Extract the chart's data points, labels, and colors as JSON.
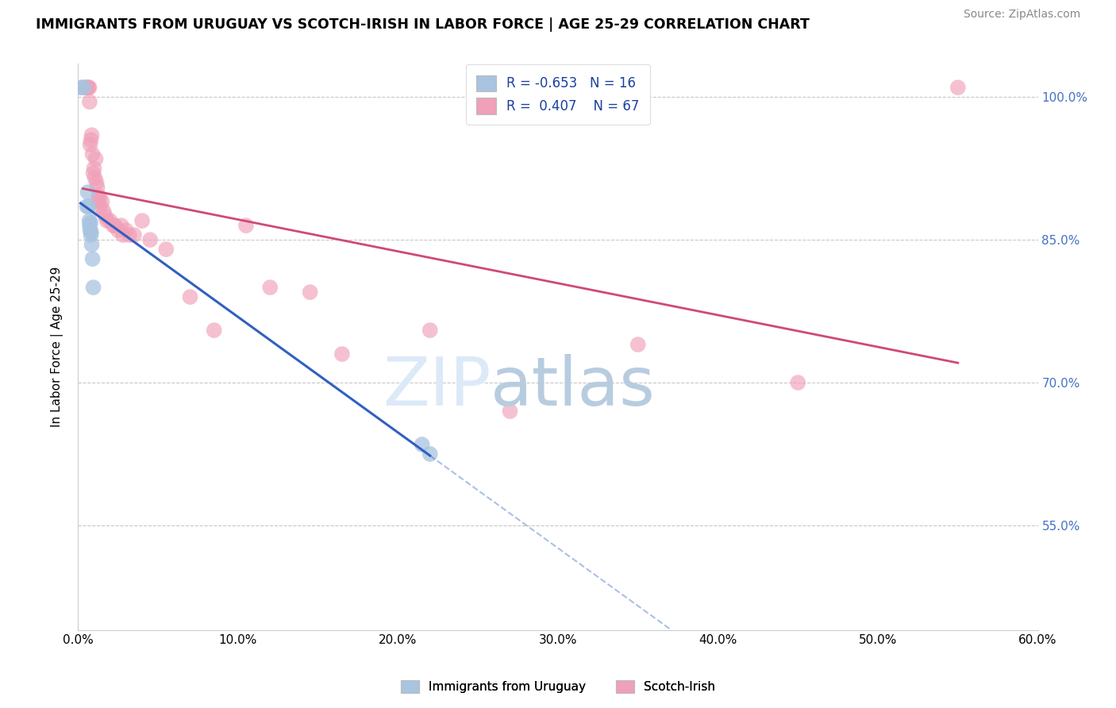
{
  "title": "IMMIGRANTS FROM URUGUAY VS SCOTCH-IRISH IN LABOR FORCE | AGE 25-29 CORRELATION CHART",
  "source": "Source: ZipAtlas.com",
  "ylabel": "In Labor Force | Age 25-29",
  "xmin": 0.0,
  "xmax": 60.0,
  "ymin": 44.0,
  "ymax": 103.5,
  "yticks": [
    55.0,
    70.0,
    85.0,
    100.0
  ],
  "right_axis_color": "#4472C4",
  "grid_color": "#c8c8c8",
  "background_color": "#ffffff",
  "legend_R_blue": "-0.653",
  "legend_N_blue": "16",
  "legend_R_pink": "0.407",
  "legend_N_pink": "67",
  "legend_label_blue": "Immigrants from Uruguay",
  "legend_label_pink": "Scotch-Irish",
  "blue_color": "#a8c4e0",
  "pink_color": "#f0a0b8",
  "blue_line_color": "#3060c0",
  "pink_line_color": "#d04878",
  "uruguay_x": [
    0.15,
    0.35,
    0.55,
    0.6,
    0.65,
    0.7,
    0.72,
    0.75,
    0.78,
    0.8,
    0.82,
    0.85,
    0.9,
    0.95,
    21.5,
    22.0
  ],
  "uruguay_y": [
    101.0,
    101.0,
    88.5,
    90.0,
    88.5,
    87.0,
    86.5,
    86.0,
    86.8,
    85.5,
    85.8,
    84.5,
    83.0,
    80.0,
    63.5,
    62.5
  ],
  "scotch_x": [
    0.3,
    0.5,
    0.55,
    0.6,
    0.65,
    0.7,
    0.72,
    0.75,
    0.8,
    0.85,
    0.9,
    0.95,
    1.0,
    1.05,
    1.1,
    1.15,
    1.2,
    1.25,
    1.3,
    1.35,
    1.4,
    1.5,
    1.6,
    1.7,
    1.8,
    2.0,
    2.2,
    2.3,
    2.5,
    2.7,
    2.8,
    3.0,
    3.2,
    3.5,
    4.0,
    4.5,
    5.5,
    7.0,
    8.5,
    10.5,
    12.0,
    14.5,
    16.5,
    22.0,
    27.0,
    35.0,
    45.0,
    55.0
  ],
  "scotch_y": [
    101.0,
    101.0,
    101.0,
    101.0,
    101.0,
    101.0,
    99.5,
    95.0,
    95.5,
    96.0,
    94.0,
    92.0,
    92.5,
    91.5,
    93.5,
    91.0,
    90.5,
    89.5,
    89.0,
    89.5,
    88.5,
    89.0,
    88.0,
    87.5,
    87.0,
    87.0,
    86.5,
    86.5,
    86.0,
    86.5,
    85.5,
    86.0,
    85.5,
    85.5,
    87.0,
    85.0,
    84.0,
    79.0,
    75.5,
    86.5,
    80.0,
    79.5,
    73.0,
    75.5,
    67.0,
    74.0,
    70.0,
    101.0
  ]
}
